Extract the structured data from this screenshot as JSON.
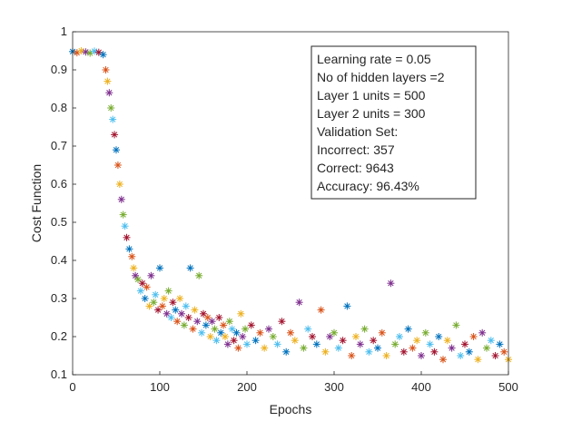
{
  "chart_data": {
    "type": "scatter",
    "xlabel": "Epochs",
    "ylabel": "Cost Function",
    "xlim": [
      0,
      500
    ],
    "ylim": [
      0.1,
      1
    ],
    "xticks": [
      "0",
      "100",
      "200",
      "300",
      "400",
      "500"
    ],
    "yticks": [
      "0.1",
      "0.2",
      "0.3",
      "0.4",
      "0.5",
      "0.6",
      "0.7",
      "0.8",
      "0.9",
      "1"
    ],
    "grid": false,
    "marker": "asterisk",
    "palette": [
      "#0072bd",
      "#d95319",
      "#edb120",
      "#7e2f8e",
      "#77ac30",
      "#4dbeee",
      "#a2142f"
    ],
    "legend_placement": "top-right",
    "annotation_lines": [
      "Learning rate = 0.05",
      "No of hidden layers =2",
      "Layer 1 units = 500",
      "Layer 2 units = 300",
      "Validation Set:",
      "Incorrect: 357",
      "Correct: 9643",
      "Accuracy: 96.43%"
    ],
    "x": [
      0,
      5,
      10,
      15,
      20,
      25,
      30,
      35,
      38,
      40,
      42,
      44,
      46,
      48,
      50,
      52,
      54,
      56,
      58,
      60,
      62,
      65,
      68,
      70,
      72,
      75,
      78,
      80,
      83,
      85,
      88,
      90,
      93,
      95,
      98,
      100,
      103,
      105,
      108,
      110,
      113,
      115,
      118,
      120,
      123,
      125,
      128,
      130,
      133,
      135,
      138,
      140,
      143,
      145,
      148,
      150,
      153,
      155,
      158,
      160,
      163,
      165,
      168,
      170,
      173,
      175,
      178,
      180,
      183,
      185,
      188,
      190,
      193,
      195,
      198,
      200,
      205,
      210,
      215,
      220,
      225,
      230,
      235,
      240,
      245,
      250,
      255,
      260,
      265,
      270,
      275,
      280,
      285,
      290,
      295,
      300,
      305,
      310,
      315,
      320,
      325,
      330,
      335,
      340,
      345,
      350,
      355,
      360,
      365,
      370,
      375,
      380,
      385,
      390,
      395,
      400,
      405,
      410,
      415,
      420,
      425,
      430,
      435,
      440,
      445,
      450,
      455,
      460,
      465,
      470,
      475,
      480,
      485,
      490,
      495,
      500
    ],
    "y": [
      0.948,
      0.945,
      0.95,
      0.947,
      0.944,
      0.949,
      0.946,
      0.94,
      0.9,
      0.87,
      0.84,
      0.8,
      0.77,
      0.73,
      0.69,
      0.65,
      0.6,
      0.56,
      0.52,
      0.49,
      0.46,
      0.43,
      0.41,
      0.38,
      0.36,
      0.35,
      0.32,
      0.34,
      0.3,
      0.33,
      0.28,
      0.36,
      0.29,
      0.31,
      0.27,
      0.38,
      0.28,
      0.3,
      0.26,
      0.32,
      0.25,
      0.29,
      0.27,
      0.24,
      0.3,
      0.26,
      0.23,
      0.28,
      0.25,
      0.38,
      0.22,
      0.27,
      0.24,
      0.36,
      0.21,
      0.26,
      0.23,
      0.25,
      0.2,
      0.24,
      0.22,
      0.19,
      0.25,
      0.21,
      0.23,
      0.2,
      0.18,
      0.24,
      0.22,
      0.19,
      0.21,
      0.17,
      0.26,
      0.2,
      0.22,
      0.18,
      0.23,
      0.19,
      0.21,
      0.17,
      0.22,
      0.2,
      0.18,
      0.24,
      0.16,
      0.21,
      0.19,
      0.29,
      0.17,
      0.22,
      0.2,
      0.18,
      0.27,
      0.16,
      0.2,
      0.21,
      0.17,
      0.19,
      0.28,
      0.15,
      0.2,
      0.18,
      0.22,
      0.16,
      0.19,
      0.17,
      0.21,
      0.15,
      0.34,
      0.18,
      0.2,
      0.16,
      0.22,
      0.17,
      0.19,
      0.15,
      0.21,
      0.18,
      0.16,
      0.2,
      0.14,
      0.19,
      0.17,
      0.23,
      0.15,
      0.18,
      0.16,
      0.2,
      0.14,
      0.21,
      0.17,
      0.19,
      0.15,
      0.18,
      0.16,
      0.14
    ]
  }
}
